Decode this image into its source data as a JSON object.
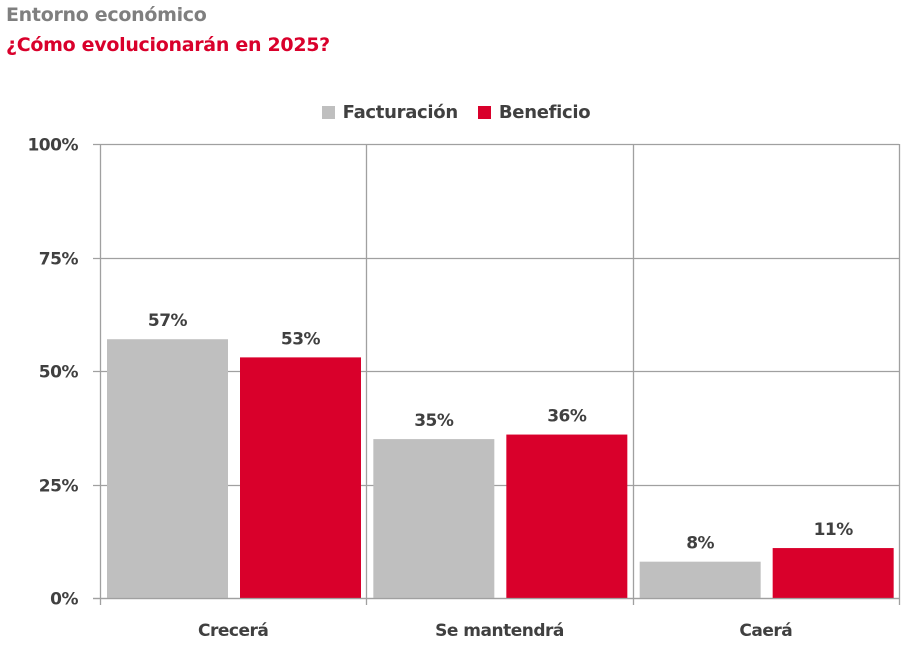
{
  "header": {
    "title": "Entorno económico",
    "subtitle": "¿Cómo evolucionarán en 2025?"
  },
  "colors": {
    "title": "#7f7f7f",
    "subtitle": "#d9002b",
    "facturacion": "#bfbfbf",
    "beneficio": "#d9002b",
    "grid": "#a0a0a0",
    "text": "#404040"
  },
  "chart_data": {
    "type": "bar",
    "title": "¿Cómo evolucionarán en 2025?",
    "xlabel": "",
    "ylabel": "",
    "categories": [
      "Crecerá",
      "Se mantendrá",
      "Caerá"
    ],
    "series": [
      {
        "name": "Facturación",
        "color": "#bfbfbf",
        "values": [
          57,
          35,
          8
        ],
        "labels": [
          "57%",
          "35%",
          "8%"
        ]
      },
      {
        "name": "Beneficio",
        "color": "#d9002b",
        "values": [
          53,
          36,
          11
        ],
        "labels": [
          "53%",
          "36%",
          "11%"
        ]
      }
    ],
    "ylim": [
      0,
      100
    ],
    "yticks": [
      0,
      25,
      50,
      75,
      100
    ],
    "ytick_labels": [
      "0%",
      "25%",
      "50%",
      "75%",
      "100%"
    ],
    "grid": true,
    "legend_position": "top-center"
  }
}
